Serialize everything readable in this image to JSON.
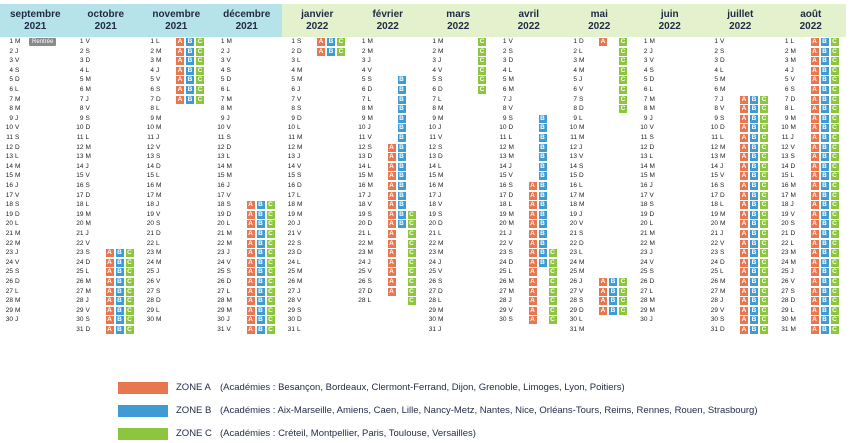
{
  "months": [
    {
      "name": "septembre",
      "year": "2021",
      "days": [
        "M",
        "J",
        "V",
        "S",
        "D",
        "L",
        "M",
        "M",
        "J",
        "V",
        "S",
        "D",
        "L",
        "M",
        "M",
        "J",
        "V",
        "S",
        "D",
        "L",
        "M",
        "M",
        "J",
        "V",
        "S",
        "D",
        "L",
        "M",
        "M",
        "J"
      ]
    },
    {
      "name": "octobre",
      "year": "2021",
      "days": [
        "V",
        "S",
        "D",
        "L",
        "M",
        "M",
        "J",
        "V",
        "S",
        "D",
        "L",
        "M",
        "M",
        "J",
        "V",
        "S",
        "D",
        "L",
        "M",
        "M",
        "J",
        "V",
        "S",
        "D",
        "L",
        "M",
        "M",
        "J",
        "V",
        "S",
        "D"
      ]
    },
    {
      "name": "novembre",
      "year": "2021",
      "days": [
        "L",
        "M",
        "M",
        "J",
        "V",
        "S",
        "D",
        "L",
        "M",
        "M",
        "J",
        "V",
        "S",
        "D",
        "L",
        "M",
        "M",
        "J",
        "V",
        "S",
        "D",
        "L",
        "M",
        "M",
        "J",
        "V",
        "S",
        "D",
        "L",
        "M"
      ]
    },
    {
      "name": "décembre",
      "year": "2021",
      "days": [
        "M",
        "J",
        "V",
        "S",
        "D",
        "L",
        "M",
        "M",
        "J",
        "V",
        "S",
        "D",
        "L",
        "M",
        "M",
        "J",
        "V",
        "S",
        "D",
        "L",
        "M",
        "M",
        "J",
        "V",
        "S",
        "D",
        "L",
        "M",
        "M",
        "J",
        "V"
      ]
    },
    {
      "name": "janvier",
      "year": "2022",
      "days": [
        "S",
        "D",
        "L",
        "M",
        "M",
        "J",
        "V",
        "S",
        "D",
        "L",
        "M",
        "M",
        "J",
        "V",
        "S",
        "D",
        "L",
        "M",
        "M",
        "J",
        "V",
        "S",
        "D",
        "L",
        "M",
        "M",
        "J",
        "V",
        "S",
        "D",
        "L"
      ]
    },
    {
      "name": "février",
      "year": "2022",
      "days": [
        "M",
        "M",
        "J",
        "V",
        "S",
        "D",
        "L",
        "M",
        "M",
        "J",
        "V",
        "S",
        "D",
        "L",
        "M",
        "M",
        "J",
        "V",
        "S",
        "D",
        "L",
        "M",
        "M",
        "J",
        "V",
        "S",
        "D",
        "L"
      ]
    },
    {
      "name": "mars",
      "year": "2022",
      "days": [
        "M",
        "M",
        "J",
        "V",
        "S",
        "D",
        "L",
        "M",
        "M",
        "J",
        "V",
        "S",
        "D",
        "L",
        "M",
        "M",
        "J",
        "V",
        "S",
        "D",
        "L",
        "M",
        "M",
        "J",
        "V",
        "S",
        "D",
        "L",
        "M",
        "M",
        "J"
      ]
    },
    {
      "name": "avril",
      "year": "2022",
      "days": [
        "V",
        "S",
        "D",
        "L",
        "M",
        "M",
        "J",
        "V",
        "S",
        "D",
        "L",
        "M",
        "M",
        "J",
        "V",
        "S",
        "D",
        "L",
        "M",
        "M",
        "J",
        "V",
        "S",
        "D",
        "L",
        "M",
        "M",
        "J",
        "V",
        "S"
      ]
    },
    {
      "name": "mai",
      "year": "2022",
      "days": [
        "D",
        "L",
        "M",
        "M",
        "J",
        "V",
        "S",
        "D",
        "L",
        "M",
        "M",
        "J",
        "V",
        "S",
        "D",
        "L",
        "M",
        "M",
        "J",
        "V",
        "S",
        "D",
        "L",
        "M",
        "M",
        "J",
        "V",
        "S",
        "D",
        "L",
        "M"
      ]
    },
    {
      "name": "juin",
      "year": "2022",
      "days": [
        "M",
        "J",
        "V",
        "S",
        "D",
        "L",
        "M",
        "M",
        "J",
        "V",
        "S",
        "D",
        "L",
        "M",
        "M",
        "J",
        "V",
        "S",
        "D",
        "L",
        "M",
        "M",
        "J",
        "V",
        "S",
        "D",
        "L",
        "M",
        "M",
        "J"
      ]
    },
    {
      "name": "juillet",
      "year": "2022",
      "days": [
        "V",
        "S",
        "D",
        "L",
        "M",
        "M",
        "J",
        "V",
        "S",
        "D",
        "L",
        "M",
        "M",
        "J",
        "V",
        "S",
        "D",
        "L",
        "M",
        "M",
        "J",
        "V",
        "S",
        "D",
        "L",
        "M",
        "M",
        "J",
        "V",
        "S",
        "D"
      ]
    },
    {
      "name": "août",
      "year": "2022",
      "days": [
        "L",
        "M",
        "M",
        "J",
        "V",
        "S",
        "D",
        "L",
        "M",
        "M",
        "J",
        "V",
        "S",
        "D",
        "L",
        "M",
        "M",
        "J",
        "V",
        "S",
        "D",
        "L",
        "M",
        "M",
        "J",
        "V",
        "S",
        "D",
        "L",
        "M",
        "M"
      ]
    }
  ],
  "rentree": {
    "month": 0,
    "day": 1,
    "label": "Rentrée"
  },
  "holidays": [
    {
      "month": 1,
      "zones": "ABC",
      "from": 23,
      "to": 31
    },
    {
      "month": 2,
      "zones": "ABC",
      "from": 1,
      "to": 7
    },
    {
      "month": 3,
      "zones": "ABC",
      "from": 18,
      "to": 31
    },
    {
      "month": 4,
      "zones": "ABC",
      "from": 1,
      "to": 2
    },
    {
      "month": 5,
      "zones": "A",
      "from": 12,
      "to": 27
    },
    {
      "month": 5,
      "zones": "B",
      "from": 5,
      "to": 20
    },
    {
      "month": 5,
      "zones": "C",
      "from": 19,
      "to": 28
    },
    {
      "month": 6,
      "zones": "C",
      "from": 1,
      "to": 6
    },
    {
      "month": 7,
      "zones": "A",
      "from": 16,
      "to": 30
    },
    {
      "month": 7,
      "zones": "B",
      "from": 9,
      "to": 24
    },
    {
      "month": 7,
      "zones": "C",
      "from": 23,
      "to": 30
    },
    {
      "month": 8,
      "zones": "A",
      "from": 1,
      "to": 1
    },
    {
      "month": 8,
      "zones": "C",
      "from": 1,
      "to": 8
    },
    {
      "month": 8,
      "zones": "ABC",
      "from": 26,
      "to": 29
    },
    {
      "month": 10,
      "zones": "ABC",
      "from": 7,
      "to": 31
    },
    {
      "month": 11,
      "zones": "ABC",
      "from": 1,
      "to": 31
    }
  ],
  "legend": [
    {
      "zone": "ZONE A",
      "text": "(Académies : Besançon, Bordeaux, Clermont-Ferrand, Dijon, Grenoble, Limoges, Lyon, Poitiers)",
      "color": "#e8764f"
    },
    {
      "zone": "ZONE B",
      "text": "(Académies : Aix-Marseille, Amiens, Caen, Lille, Nancy-Metz, Nantes, Nice, Orléans-Tours, Reims, Rennes, Rouen, Strasbourg)",
      "color": "#3f9bd3"
    },
    {
      "zone": "ZONE C",
      "text": "(Académies : Créteil, Montpellier, Paris, Toulouse, Versailles)",
      "color": "#8cc63f"
    }
  ],
  "colors": {
    "zoneA": "#e8764f",
    "zoneB": "#3f9bd3",
    "zoneC": "#8cc63f",
    "header2021": "#b6e2ea",
    "header2022": "#e3f1cc"
  }
}
